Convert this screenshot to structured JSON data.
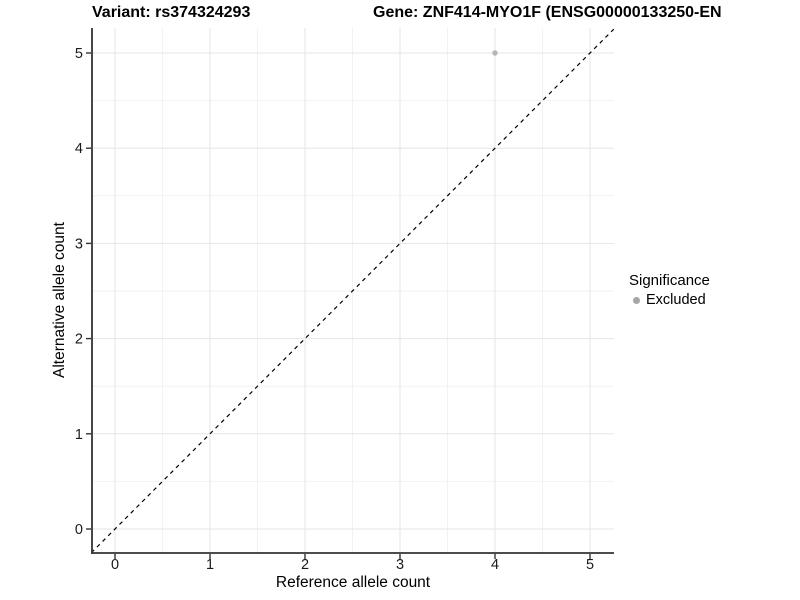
{
  "chart_data": {
    "type": "scatter",
    "title_left": "Variant: rs374324293",
    "title_right": "Gene: ZNF414-MYO1F (ENSG00000133250-EN",
    "xlabel": "Reference allele count",
    "ylabel": "Alternative allele count",
    "xlim": [
      -0.25,
      5.25
    ],
    "ylim": [
      -0.25,
      5.25
    ],
    "x_ticks": [
      0,
      1,
      2,
      3,
      4,
      5
    ],
    "y_ticks": [
      0,
      1,
      2,
      3,
      4,
      5
    ],
    "grid": true,
    "minor_gridlines": true,
    "reference_line": {
      "style": "dashed",
      "equation": "y = x",
      "from": [
        -0.25,
        -0.25
      ],
      "to": [
        5.25,
        5.25
      ],
      "color": "#000000"
    },
    "series": [
      {
        "name": "Excluded",
        "color": "#b5b5b5",
        "points": [
          {
            "x": 4,
            "y": 5
          }
        ]
      }
    ],
    "legend": {
      "title": "Significance",
      "position": "right",
      "items": [
        {
          "label": "Excluded",
          "marker_color": "#a6a6a6"
        }
      ]
    },
    "colors": {
      "background": "#ffffff",
      "grid_major": "#e6e6e6",
      "grid_minor": "#f2f2f2",
      "axis_line": "#333333",
      "tick_text": "#1a1a1a",
      "point": "#b5b5b5"
    }
  }
}
